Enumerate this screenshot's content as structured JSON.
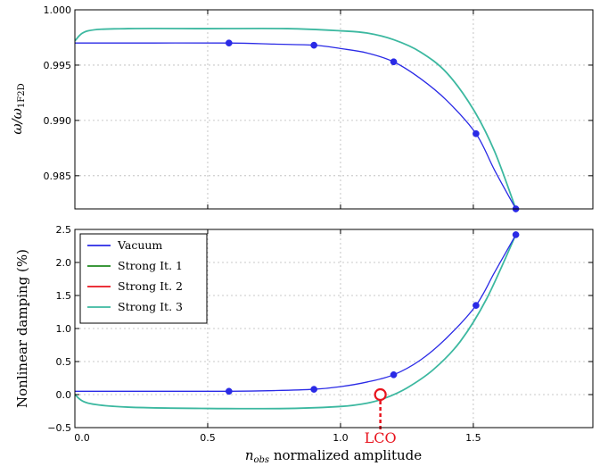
{
  "colors": {
    "vacuum": "#2a2ae6",
    "strong1": "#1f8a1f",
    "strong2": "#e8141e",
    "strong3": "#3cb8a0",
    "lco": "#e8141e"
  },
  "chart_data": [
    {
      "type": "line",
      "panel": "top",
      "ylabel": "ω/ω",
      "ylabel_sub": "1F2D",
      "xlim": [
        0,
        1.95
      ],
      "ylim": [
        0.982,
        1.0
      ],
      "yticks": [
        "1.000",
        "0.995",
        "0.990",
        "0.985"
      ],
      "grid": true,
      "series": [
        {
          "name": "Vacuum",
          "color_key": "vacuum",
          "x": [
            0.0,
            0.3,
            0.58,
            0.75,
            0.9,
            1.0,
            1.1,
            1.2,
            1.3,
            1.4,
            1.51,
            1.58,
            1.66
          ],
          "y": [
            0.997,
            0.997,
            0.997,
            0.9969,
            0.9968,
            0.9965,
            0.9961,
            0.9953,
            0.9938,
            0.9918,
            0.9888,
            0.9855,
            0.982
          ],
          "markers_x": [
            0.58,
            0.9,
            1.2,
            1.51,
            1.66
          ],
          "markers_y": [
            0.997,
            0.9968,
            0.9953,
            0.9888,
            0.982
          ]
        },
        {
          "name": "Strong It. 3",
          "color_key": "strong3",
          "x": [
            0.0,
            0.05,
            0.2,
            0.5,
            0.8,
            1.0,
            1.1,
            1.2,
            1.3,
            1.4,
            1.5,
            1.58,
            1.66
          ],
          "y": [
            0.9972,
            0.9981,
            0.9983,
            0.9983,
            0.9983,
            0.9981,
            0.9979,
            0.9973,
            0.9962,
            0.9943,
            0.991,
            0.9872,
            0.982
          ]
        }
      ]
    },
    {
      "type": "line",
      "panel": "bottom",
      "xlabel_italic": "n",
      "xlabel_sub": "obs",
      "xlabel": "normalized amplitude",
      "ylabel": "Nonlinear damping (%)",
      "xlim": [
        0,
        1.95
      ],
      "ylim": [
        -0.5,
        2.5
      ],
      "xticks": [
        "0.0",
        "0.5",
        "1.0",
        "1.5"
      ],
      "yticks": [
        "2.5",
        "2.0",
        "1.5",
        "1.0",
        "0.5",
        "0.0",
        "−0.5"
      ],
      "grid": true,
      "legend_placement": "top-left",
      "legend": [
        "Vacuum",
        "Strong It. 1",
        "Strong It. 2",
        "Strong It. 3"
      ],
      "series": [
        {
          "name": "Vacuum",
          "color_key": "vacuum",
          "x": [
            0.0,
            0.3,
            0.58,
            0.75,
            0.9,
            1.0,
            1.1,
            1.2,
            1.3,
            1.4,
            1.51,
            1.58,
            1.66
          ],
          "y": [
            0.05,
            0.05,
            0.05,
            0.06,
            0.08,
            0.12,
            0.19,
            0.3,
            0.52,
            0.86,
            1.35,
            1.85,
            2.42
          ],
          "markers_x": [
            0.58,
            0.9,
            1.2,
            1.51,
            1.66
          ],
          "markers_y": [
            0.05,
            0.08,
            0.3,
            1.35,
            2.42
          ]
        },
        {
          "name": "Strong It. 3",
          "color_key": "strong3",
          "x": [
            0.0,
            0.05,
            0.2,
            0.5,
            0.8,
            1.0,
            1.1,
            1.17,
            1.25,
            1.35,
            1.45,
            1.55,
            1.66
          ],
          "y": [
            0.0,
            -0.13,
            -0.19,
            -0.21,
            -0.21,
            -0.18,
            -0.13,
            -0.05,
            0.1,
            0.38,
            0.8,
            1.45,
            2.42
          ]
        }
      ],
      "annotation": {
        "text": "LCO",
        "x": 1.15,
        "y": 0.0
      }
    }
  ]
}
